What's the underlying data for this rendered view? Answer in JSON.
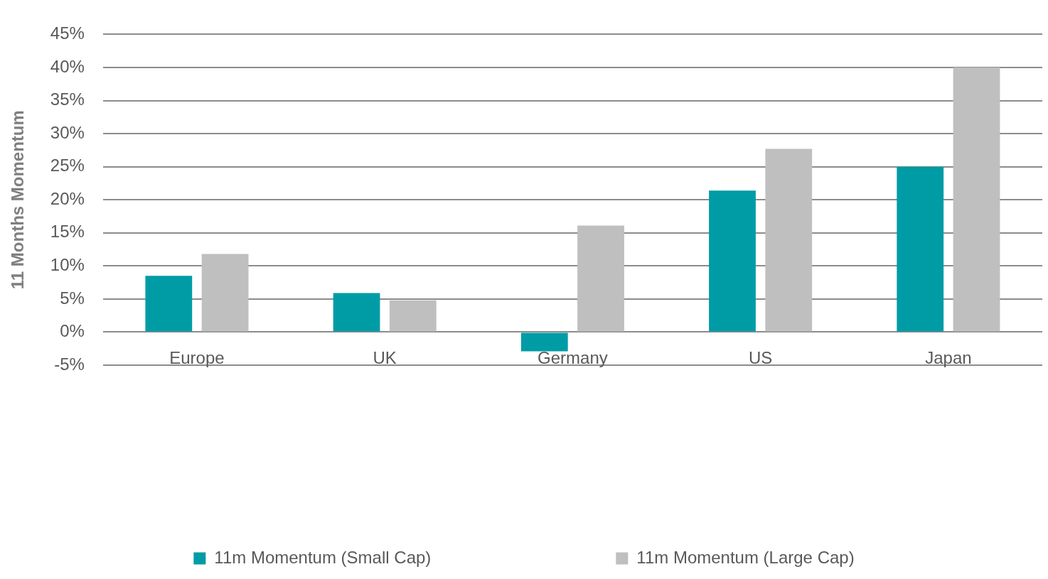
{
  "chart_data": {
    "type": "bar",
    "ylabel": "11 Months Momentum",
    "categories": [
      "Europe",
      "UK",
      "Germany",
      "US",
      "Japan"
    ],
    "series": [
      {
        "name": "11m Momentum (Small Cap)",
        "color": "#009ca6",
        "values": [
          8.5,
          5.9,
          -2.9,
          21.4,
          25.0
        ]
      },
      {
        "name": "11m Momentum (Large Cap)",
        "color": "#bfbfbf",
        "values": [
          11.8,
          4.8,
          16.1,
          27.7,
          40.0
        ]
      }
    ],
    "ylim": [
      -5,
      45
    ],
    "yticks": [
      {
        "value": -5,
        "label": "-5%"
      },
      {
        "value": 0,
        "label": "0%"
      },
      {
        "value": 5,
        "label": "5%"
      },
      {
        "value": 10,
        "label": "10%"
      },
      {
        "value": 15,
        "label": "15%"
      },
      {
        "value": 20,
        "label": "20%"
      },
      {
        "value": 25,
        "label": "25%"
      },
      {
        "value": 30,
        "label": "30%"
      },
      {
        "value": 35,
        "label": "35%"
      },
      {
        "value": 40,
        "label": "40%"
      },
      {
        "value": 45,
        "label": "45%"
      }
    ],
    "grid": "y",
    "legend": "bottom"
  }
}
